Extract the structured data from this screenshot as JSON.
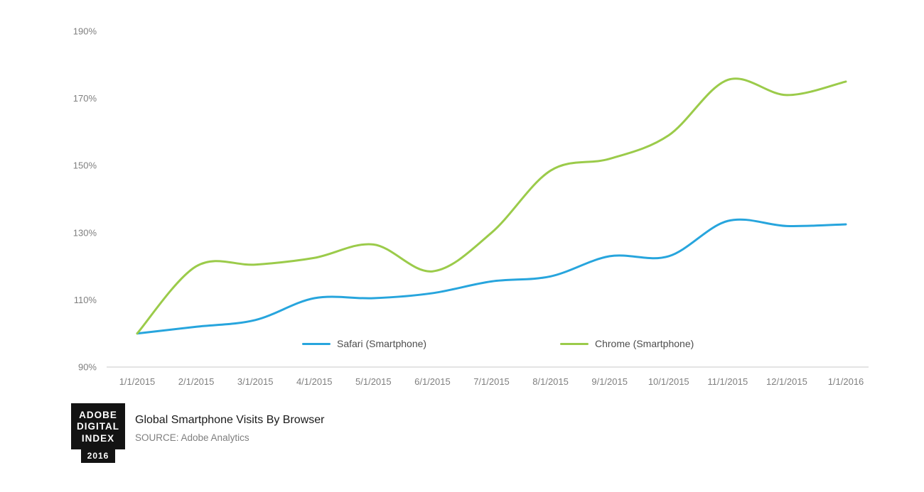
{
  "chart_data": {
    "type": "line",
    "title": "Global Smartphone Visits By Browser",
    "xlabel": "",
    "ylabel": "",
    "ylim": [
      90,
      190
    ],
    "grid": false,
    "legend_position": "inside-bottom",
    "x_categories": [
      "1/1/2015",
      "2/1/2015",
      "3/1/2015",
      "4/1/2015",
      "5/1/2015",
      "6/1/2015",
      "7/1/2015",
      "8/1/2015",
      "9/1/2015",
      "10/1/2015",
      "11/1/2015",
      "12/1/2015",
      "1/1/2016"
    ],
    "y_ticks": [
      {
        "value": 190,
        "label": "190%"
      },
      {
        "value": 170,
        "label": "170%"
      },
      {
        "value": 150,
        "label": "150%"
      },
      {
        "value": 130,
        "label": "130%"
      },
      {
        "value": 110,
        "label": "110%"
      },
      {
        "value": 90,
        "label": "90%"
      }
    ],
    "series": [
      {
        "name": "Safari (Smartphone)",
        "color": "#27a5dd",
        "values": [
          100,
          102,
          104,
          110.5,
          110.5,
          112,
          115.5,
          117,
          123,
          123,
          133.5,
          132,
          132.5
        ]
      },
      {
        "name": "Chrome (Smartphone)",
        "color": "#9bcb4a",
        "values": [
          100,
          120,
          120.5,
          122.5,
          126.5,
          118.5,
          130,
          148.5,
          152,
          159,
          175.5,
          171,
          175
        ]
      }
    ]
  },
  "legend": {
    "safari_label": "Safari (Smartphone)",
    "chrome_label": "Chrome (Smartphone)"
  },
  "footer": {
    "logo_line1": "ADOBE",
    "logo_line2": "DIGITAL",
    "logo_line3": "INDEX",
    "logo_year": "2016",
    "title": "Global Smartphone Visits By Browser",
    "source": "SOURCE: Adobe Analytics"
  },
  "colors": {
    "safari_line": "#27a5dd",
    "chrome_line": "#9bcb4a",
    "axis_text": "#7f7f7f",
    "axis_line": "#c9c9c9"
  }
}
